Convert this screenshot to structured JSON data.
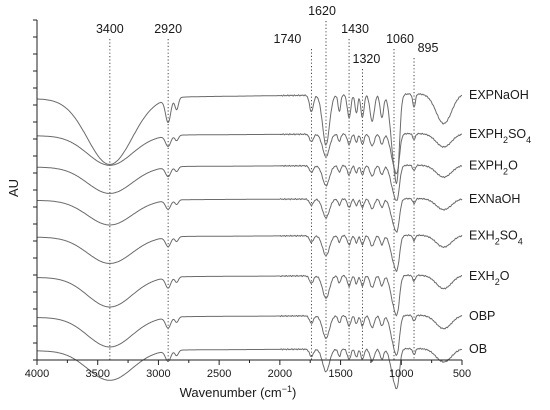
{
  "chart_data": {
    "type": "line",
    "xlabel": "Wavenumber (cm",
    "xlabel_sup": "−1",
    "xlabel_close": ")",
    "ylabel": "AU",
    "xlim": [
      4000,
      500
    ],
    "x_reversed": true,
    "xticks": [
      4000,
      3500,
      3000,
      2500,
      2000,
      1500,
      1000,
      500
    ],
    "yticks_labeled": false,
    "grid": false,
    "peak_markers": [
      {
        "wavenumber": 3400,
        "label": "3400"
      },
      {
        "wavenumber": 2920,
        "label": "2920"
      },
      {
        "wavenumber": 1740,
        "label": "1740"
      },
      {
        "wavenumber": 1620,
        "label": "1620"
      },
      {
        "wavenumber": 1430,
        "label": "1430"
      },
      {
        "wavenumber": 1320,
        "label": "1320"
      },
      {
        "wavenumber": 1060,
        "label": "1060"
      },
      {
        "wavenumber": 895,
        "label": "895"
      }
    ],
    "series": [
      {
        "name": "EXPNaOH",
        "label_parts": [
          [
            "EXPNaOH",
            ""
          ]
        ],
        "offset": 8.0,
        "scale": 2.0
      },
      {
        "name": "EXPH2SO4",
        "label_parts": [
          [
            "EXPH",
            ""
          ],
          [
            "2",
            "sub"
          ],
          [
            "SO",
            ""
          ],
          [
            "4",
            "sub"
          ]
        ],
        "offset": 6.8,
        "scale": 0.9
      },
      {
        "name": "EXPH2O",
        "label_parts": [
          [
            "EXPH",
            ""
          ],
          [
            "2",
            "sub"
          ],
          [
            "O",
            ""
          ]
        ],
        "offset": 5.85,
        "scale": 0.8
      },
      {
        "name": "EXNaOH",
        "label_parts": [
          [
            "EXNaOH",
            ""
          ]
        ],
        "offset": 4.85,
        "scale": 0.75
      },
      {
        "name": "EXH2SO4",
        "label_parts": [
          [
            "EXH",
            ""
          ],
          [
            "2",
            "sub"
          ],
          [
            "SO",
            ""
          ],
          [
            "4",
            "sub"
          ]
        ],
        "offset": 3.75,
        "scale": 0.8
      },
      {
        "name": "EXH2O",
        "label_parts": [
          [
            "EXH",
            ""
          ],
          [
            "2",
            "sub"
          ],
          [
            "O",
            ""
          ]
        ],
        "offset": 2.55,
        "scale": 0.9
      },
      {
        "name": "OBP",
        "label_parts": [
          [
            "OBP",
            ""
          ]
        ],
        "offset": 1.35,
        "scale": 0.9
      },
      {
        "name": "OB",
        "label_parts": [
          [
            "OB",
            ""
          ]
        ],
        "offset": 0.35,
        "scale": 0.9
      }
    ]
  }
}
